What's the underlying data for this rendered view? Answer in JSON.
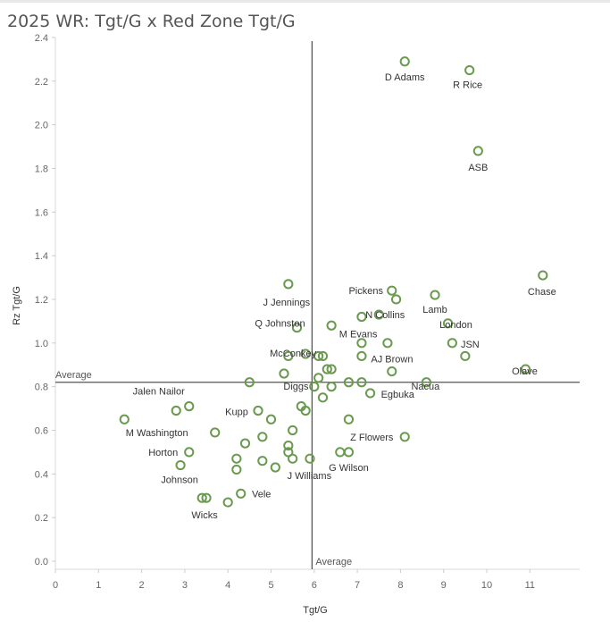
{
  "title": "2025 WR: Tgt/G x Red Zone Tgt/G",
  "chart_data": {
    "type": "scatter",
    "title": "2025 WR: Tgt/G x Red Zone Tgt/G",
    "xlabel": "Tgt/G",
    "ylabel": "Rz Tgt/G",
    "xlim": [
      0,
      12
    ],
    "ylim": [
      0,
      2.4
    ],
    "x_ticks": [
      0,
      1,
      2,
      3,
      4,
      5,
      6,
      7,
      8,
      9,
      10,
      11
    ],
    "y_ticks": [
      "0.0",
      "0.2",
      "0.4",
      "0.6",
      "0.8",
      "1.0",
      "1.2",
      "1.4",
      "1.6",
      "1.8",
      "2.0",
      "2.2",
      "2.4"
    ],
    "grid": false,
    "marker_color": "#6a9a4f",
    "reference_lines": [
      {
        "axis": "x",
        "value": 5.95,
        "label": "Average"
      },
      {
        "axis": "y",
        "value": 0.82,
        "label": "Average"
      }
    ],
    "points": [
      {
        "x": 8.1,
        "y": 2.29,
        "label": "D Adams"
      },
      {
        "x": 9.6,
        "y": 2.25,
        "label": "R Rice"
      },
      {
        "x": 9.8,
        "y": 1.88,
        "label": "ASB"
      },
      {
        "x": 11.3,
        "y": 1.31,
        "label": "Chase"
      },
      {
        "x": 5.4,
        "y": 1.27,
        "label": "J Jennings"
      },
      {
        "x": 7.8,
        "y": 1.24,
        "label": "Pickens"
      },
      {
        "x": 8.8,
        "y": 1.22,
        "label": "Lamb"
      },
      {
        "x": 7.9,
        "y": 1.2,
        "label": ""
      },
      {
        "x": 7.1,
        "y": 1.12,
        "label": ""
      },
      {
        "x": 7.5,
        "y": 1.13,
        "label": "N Collins"
      },
      {
        "x": 9.1,
        "y": 1.09,
        "label": "London"
      },
      {
        "x": 5.6,
        "y": 1.07,
        "label": "Q Johnston"
      },
      {
        "x": 6.4,
        "y": 1.08,
        "label": "M Evans"
      },
      {
        "x": 7.1,
        "y": 1.0,
        "label": ""
      },
      {
        "x": 7.7,
        "y": 1.0,
        "label": ""
      },
      {
        "x": 9.2,
        "y": 1.0,
        "label": "JSN"
      },
      {
        "x": 5.4,
        "y": 0.94,
        "label": ""
      },
      {
        "x": 5.8,
        "y": 0.95,
        "label": "McConkey"
      },
      {
        "x": 6.1,
        "y": 0.94,
        "label": ""
      },
      {
        "x": 6.2,
        "y": 0.94,
        "label": ""
      },
      {
        "x": 7.1,
        "y": 0.94,
        "label": "AJ Brown"
      },
      {
        "x": 9.5,
        "y": 0.94,
        "label": ""
      },
      {
        "x": 5.3,
        "y": 0.86,
        "label": ""
      },
      {
        "x": 6.3,
        "y": 0.88,
        "label": ""
      },
      {
        "x": 6.4,
        "y": 0.88,
        "label": ""
      },
      {
        "x": 7.8,
        "y": 0.87,
        "label": ""
      },
      {
        "x": 10.9,
        "y": 0.88,
        "label": "Olave"
      },
      {
        "x": 6.1,
        "y": 0.84,
        "label": ""
      },
      {
        "x": 4.5,
        "y": 0.82,
        "label": ""
      },
      {
        "x": 6.8,
        "y": 0.82,
        "label": ""
      },
      {
        "x": 7.1,
        "y": 0.82,
        "label": ""
      },
      {
        "x": 8.6,
        "y": 0.82,
        "label": "Nacua"
      },
      {
        "x": 6.0,
        "y": 0.8,
        "label": ""
      },
      {
        "x": 6.4,
        "y": 0.8,
        "label": ""
      },
      {
        "x": 6.2,
        "y": 0.75,
        "label": "Diggs"
      },
      {
        "x": 7.3,
        "y": 0.77,
        "label": "Egbuka"
      },
      {
        "x": 3.1,
        "y": 0.71,
        "label": "Jalen Nailor"
      },
      {
        "x": 2.8,
        "y": 0.69,
        "label": ""
      },
      {
        "x": 5.7,
        "y": 0.71,
        "label": ""
      },
      {
        "x": 5.8,
        "y": 0.69,
        "label": ""
      },
      {
        "x": 4.7,
        "y": 0.69,
        "label": "Kupp"
      },
      {
        "x": 1.6,
        "y": 0.65,
        "label": ""
      },
      {
        "x": 5.0,
        "y": 0.65,
        "label": ""
      },
      {
        "x": 6.8,
        "y": 0.65,
        "label": ""
      },
      {
        "x": 3.7,
        "y": 0.59,
        "label": "M Washington"
      },
      {
        "x": 5.5,
        "y": 0.6,
        "label": ""
      },
      {
        "x": 4.8,
        "y": 0.57,
        "label": ""
      },
      {
        "x": 8.1,
        "y": 0.57,
        "label": "Z Flowers"
      },
      {
        "x": 4.4,
        "y": 0.54,
        "label": ""
      },
      {
        "x": 5.4,
        "y": 0.53,
        "label": ""
      },
      {
        "x": 3.1,
        "y": 0.5,
        "label": "Horton"
      },
      {
        "x": 5.4,
        "y": 0.5,
        "label": ""
      },
      {
        "x": 6.6,
        "y": 0.5,
        "label": ""
      },
      {
        "x": 6.8,
        "y": 0.5,
        "label": "G Wilson"
      },
      {
        "x": 4.2,
        "y": 0.47,
        "label": ""
      },
      {
        "x": 5.5,
        "y": 0.47,
        "label": ""
      },
      {
        "x": 5.9,
        "y": 0.47,
        "label": ""
      },
      {
        "x": 4.8,
        "y": 0.46,
        "label": ""
      },
      {
        "x": 2.9,
        "y": 0.44,
        "label": "Johnson"
      },
      {
        "x": 5.1,
        "y": 0.43,
        "label": "J Williams"
      },
      {
        "x": 4.2,
        "y": 0.42,
        "label": ""
      },
      {
        "x": 4.3,
        "y": 0.31,
        "label": "Vele"
      },
      {
        "x": 3.4,
        "y": 0.29,
        "label": ""
      },
      {
        "x": 3.5,
        "y": 0.29,
        "label": "Wicks"
      },
      {
        "x": 4.0,
        "y": 0.27,
        "label": ""
      }
    ]
  }
}
